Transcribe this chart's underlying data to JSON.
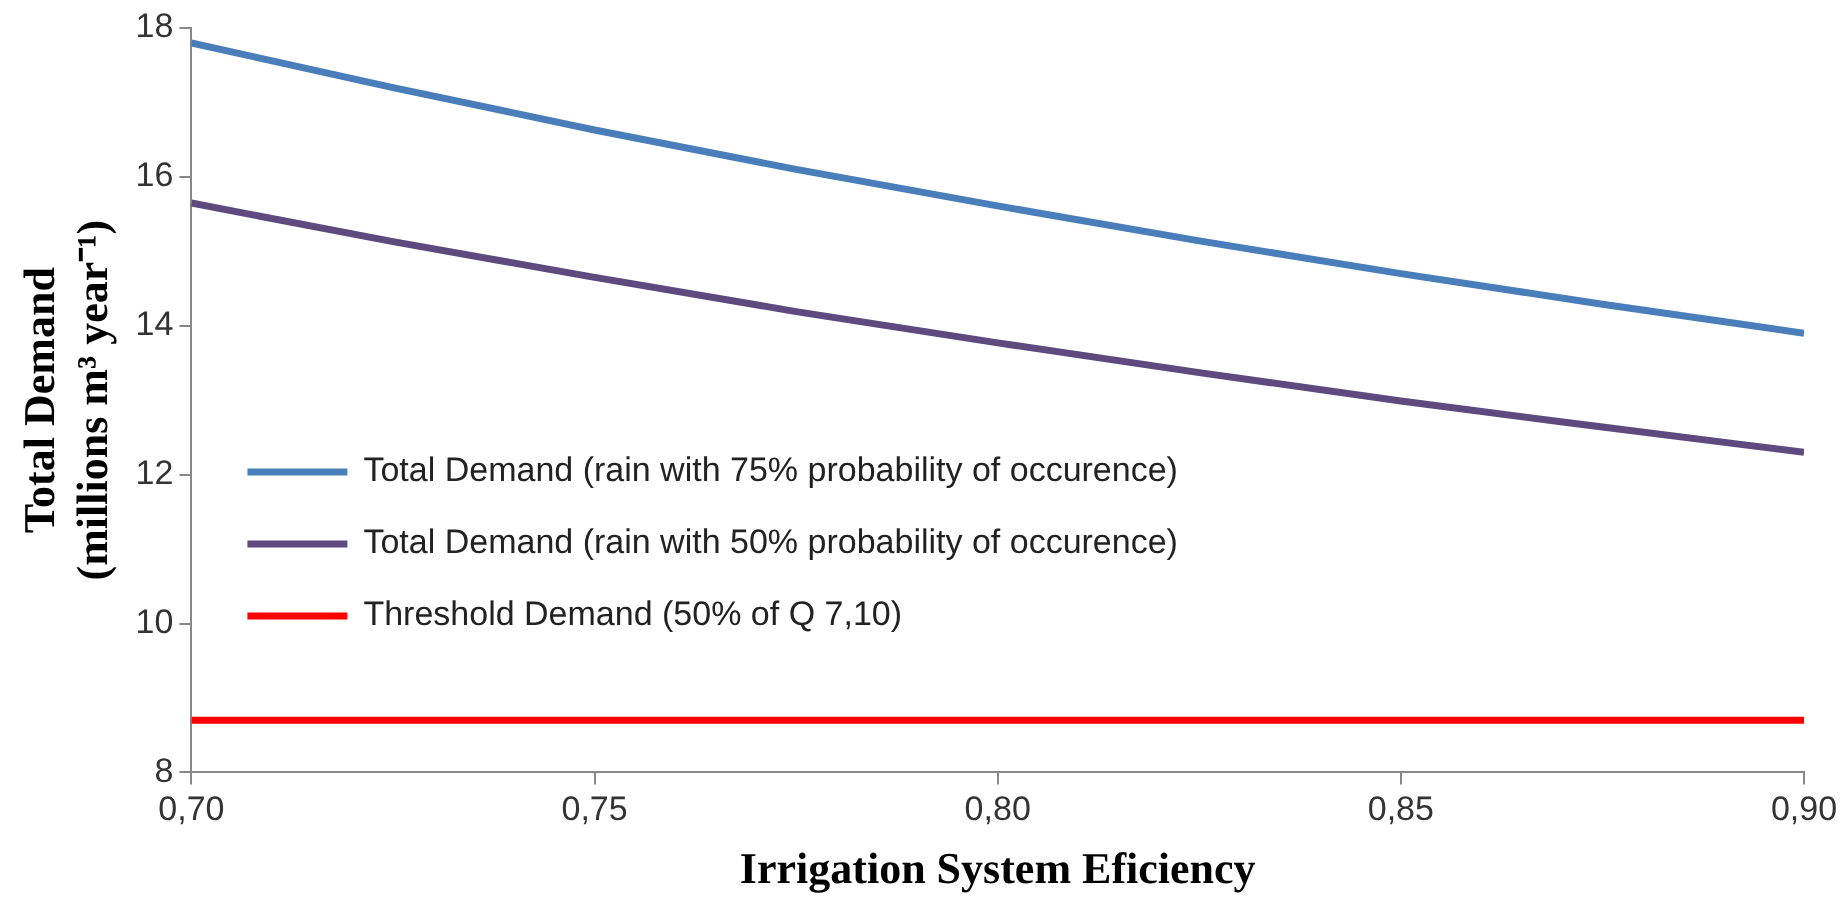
{
  "chart_data": {
    "type": "line",
    "xlabel": "Irrigation System Eficiency",
    "ylabel": "Total Demand\n(millions m³ year⁻¹)",
    "x": [
      0.7,
      0.725,
      0.75,
      0.775,
      0.8,
      0.825,
      0.85,
      0.875,
      0.9
    ],
    "series": [
      {
        "name": "Total Demand (rain with 75% probability of occurence)",
        "color": "#4a7ebb",
        "values": [
          17.8,
          17.2,
          16.63,
          16.1,
          15.61,
          15.14,
          14.7,
          14.29,
          13.9
        ]
      },
      {
        "name": "Total Demand (rain with 50% probability of occurence)",
        "color": "#5e4a7e",
        "values": [
          15.65,
          15.13,
          14.65,
          14.19,
          13.77,
          13.37,
          12.99,
          12.64,
          12.3
        ]
      },
      {
        "name": "Threshold Demand (50% of Q 7,10)",
        "color": "#ff0000",
        "values": [
          8.7,
          8.7,
          8.7,
          8.7,
          8.7,
          8.7,
          8.7,
          8.7,
          8.7
        ]
      }
    ],
    "xlim": [
      0.7,
      0.9
    ],
    "xticks": [
      {
        "value": 0.7,
        "label": "0,70"
      },
      {
        "value": 0.75,
        "label": "0,75"
      },
      {
        "value": 0.8,
        "label": "0,80"
      },
      {
        "value": 0.85,
        "label": "0,85"
      },
      {
        "value": 0.9,
        "label": "0,90"
      }
    ],
    "ylim": [
      8,
      18
    ],
    "yticks": [
      8,
      10,
      12,
      14,
      16,
      18
    ],
    "grid": false,
    "legend": "left",
    "marker": "none",
    "line_style": "solid"
  }
}
